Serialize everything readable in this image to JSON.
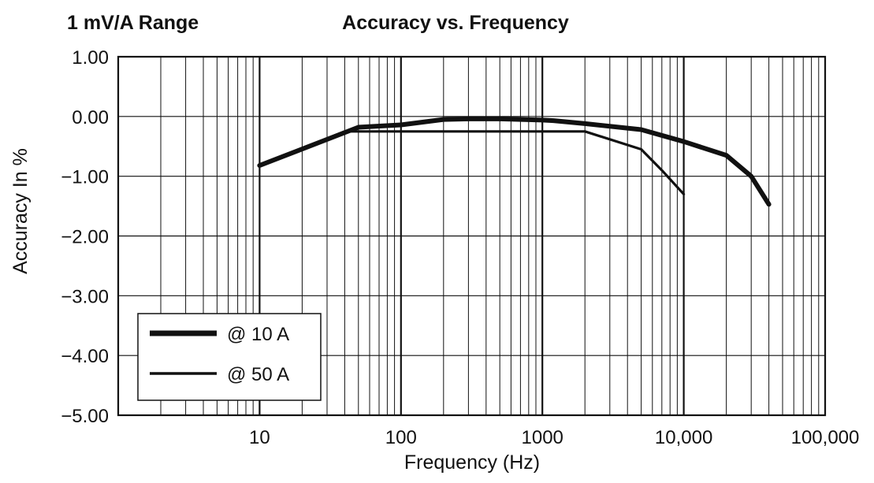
{
  "header": {
    "range_label": "1 mV/A Range"
  },
  "chart_data": {
    "type": "line",
    "title": "Accuracy vs. Frequency",
    "xlabel": "Frequency (Hz)",
    "ylabel": "Accuracy In %",
    "xscale": "log",
    "xlim": [
      1,
      100000
    ],
    "ylim": [
      -5,
      1
    ],
    "grid": true,
    "legend_position": "bottom-left",
    "x_tick_values": [
      10,
      100,
      1000,
      10000,
      100000
    ],
    "x_tick_labels": [
      "10",
      "100",
      "1000",
      "10,000",
      "100,000"
    ],
    "y_tick_values": [
      1,
      0,
      -1,
      -2,
      -3,
      -4,
      -5
    ],
    "y_tick_labels": [
      "1.00",
      "0.00",
      "−1.00",
      "−2.00",
      "−3.00",
      "−4.00",
      "−5.00"
    ],
    "series": [
      {
        "name": "@ 10 A",
        "line": "thick",
        "color": "#111111",
        "points": [
          [
            10,
            -0.82
          ],
          [
            50,
            -0.18
          ],
          [
            100,
            -0.14
          ],
          [
            200,
            -0.05
          ],
          [
            300,
            -0.04
          ],
          [
            500,
            -0.04
          ],
          [
            1000,
            -0.06
          ],
          [
            1200,
            -0.07
          ],
          [
            2000,
            -0.12
          ],
          [
            5000,
            -0.22
          ],
          [
            10000,
            -0.42
          ],
          [
            20000,
            -0.65
          ],
          [
            30000,
            -1.0
          ],
          [
            40000,
            -1.47
          ]
        ]
      },
      {
        "name": "@ 50 A",
        "line": "thin",
        "color": "#111111",
        "points": [
          [
            10,
            -0.82
          ],
          [
            40,
            -0.25
          ],
          [
            2000,
            -0.25
          ],
          [
            5000,
            -0.55
          ],
          [
            7000,
            -0.9
          ],
          [
            10000,
            -1.3
          ]
        ]
      }
    ]
  }
}
